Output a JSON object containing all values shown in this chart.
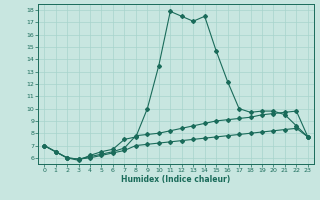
{
  "xlabel": "Humidex (Indice chaleur)",
  "background_color": "#c8e6e0",
  "line_color": "#1a6b5a",
  "xlim": [
    -0.5,
    23.5
  ],
  "ylim": [
    5.5,
    18.5
  ],
  "xticks": [
    0,
    1,
    2,
    3,
    4,
    5,
    6,
    7,
    8,
    9,
    10,
    11,
    12,
    13,
    14,
    15,
    16,
    17,
    18,
    19,
    20,
    21,
    22,
    23
  ],
  "yticks": [
    6,
    7,
    8,
    9,
    10,
    11,
    12,
    13,
    14,
    15,
    16,
    17,
    18
  ],
  "series1_x": [
    0,
    1,
    2,
    3,
    4,
    5,
    6,
    7,
    8,
    9,
    10,
    11,
    12,
    13,
    14,
    15,
    16,
    17,
    18,
    19,
    20,
    21,
    22,
    23
  ],
  "series1_y": [
    7.0,
    6.5,
    6.0,
    5.8,
    6.2,
    6.5,
    6.7,
    7.5,
    7.7,
    10.0,
    13.5,
    17.9,
    17.5,
    17.1,
    17.5,
    14.7,
    12.2,
    10.0,
    9.7,
    9.8,
    9.8,
    9.5,
    8.6,
    7.7
  ],
  "series2_x": [
    0,
    1,
    2,
    3,
    4,
    5,
    6,
    7,
    8,
    9,
    10,
    11,
    12,
    13,
    14,
    15,
    16,
    17,
    18,
    19,
    20,
    21,
    22,
    23
  ],
  "series2_y": [
    7.0,
    6.5,
    6.0,
    5.9,
    6.1,
    6.3,
    6.5,
    6.8,
    7.8,
    7.9,
    8.0,
    8.2,
    8.4,
    8.6,
    8.8,
    9.0,
    9.1,
    9.2,
    9.3,
    9.5,
    9.6,
    9.7,
    9.8,
    7.7
  ],
  "series3_x": [
    0,
    1,
    2,
    3,
    4,
    5,
    6,
    7,
    8,
    9,
    10,
    11,
    12,
    13,
    14,
    15,
    16,
    17,
    18,
    19,
    20,
    21,
    22,
    23
  ],
  "series3_y": [
    7.0,
    6.5,
    6.0,
    5.9,
    6.0,
    6.2,
    6.4,
    6.6,
    7.0,
    7.1,
    7.2,
    7.3,
    7.4,
    7.5,
    7.6,
    7.7,
    7.8,
    7.9,
    8.0,
    8.1,
    8.2,
    8.3,
    8.4,
    7.7
  ],
  "grid_color": "#a8d4cc",
  "marker": "D",
  "markersize": 2.0,
  "linewidth": 0.8
}
